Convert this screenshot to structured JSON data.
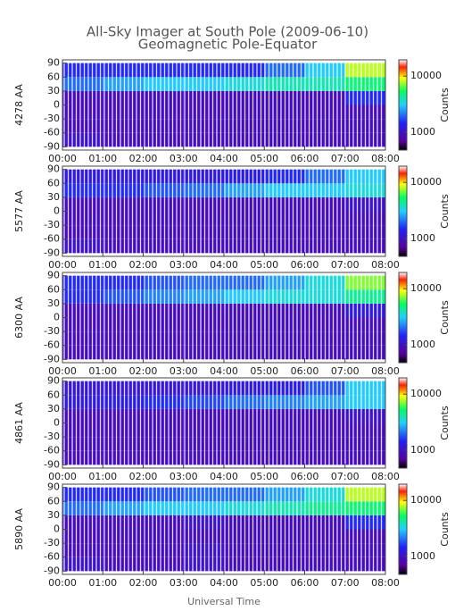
{
  "title": "All-Sky Imager at South Pole (2009-06-10)",
  "subtitle": "Geomagnetic Pole-Equator",
  "xlabel": "Universal Time",
  "chart_data": [
    {
      "type": "heatmap",
      "ylabel": "4278 AA",
      "x": [
        0.5,
        1.5,
        2.5,
        3.5,
        4.5,
        5.5,
        6.5,
        7.5
      ],
      "y": [
        -75,
        -45,
        -15,
        15,
        45,
        75
      ],
      "values": [
        [
          1000,
          900,
          900,
          900,
          900,
          900,
          900,
          900
        ],
        [
          900,
          900,
          900,
          900,
          900,
          900,
          900,
          900
        ],
        [
          900,
          900,
          900,
          900,
          900,
          900,
          900,
          900
        ],
        [
          900,
          900,
          900,
          900,
          900,
          900,
          900,
          1500
        ],
        [
          2000,
          2500,
          3000,
          3000,
          3500,
          4000,
          4000,
          5000
        ],
        [
          1500,
          1500,
          1500,
          1500,
          1500,
          2000,
          3000,
          8000
        ]
      ],
      "xlim": [
        0,
        8
      ],
      "xticks": [
        {
          "value": 0,
          "label": "00:00"
        },
        {
          "value": 1,
          "label": "01:00"
        },
        {
          "value": 2,
          "label": "02:00"
        },
        {
          "value": 3,
          "label": "03:00"
        },
        {
          "value": 4,
          "label": "04:00"
        },
        {
          "value": 5,
          "label": "05:00"
        },
        {
          "value": 6,
          "label": "06:00"
        },
        {
          "value": 7,
          "label": "07:00"
        },
        {
          "value": 8,
          "label": "08:00"
        }
      ],
      "ylim": [
        -97,
        97
      ],
      "yticks": [
        90,
        60,
        30,
        0,
        -30,
        -60,
        -90
      ],
      "colorbar": {
        "label": "Counts",
        "log": true,
        "lim": [
          480,
          19500
        ],
        "ticks": [
          1000,
          10000
        ]
      }
    },
    {
      "type": "heatmap",
      "ylabel": "5577 AA",
      "x": [
        0.5,
        1.5,
        2.5,
        3.5,
        4.5,
        5.5,
        6.5,
        7.5
      ],
      "y": [
        -75,
        -45,
        -15,
        15,
        45,
        75
      ],
      "values": [
        [
          1000,
          900,
          900,
          900,
          900,
          900,
          900,
          900
        ],
        [
          900,
          900,
          900,
          900,
          900,
          900,
          900,
          900
        ],
        [
          900,
          900,
          900,
          900,
          900,
          900,
          900,
          900
        ],
        [
          900,
          900,
          900,
          900,
          900,
          900,
          900,
          1000
        ],
        [
          1500,
          1500,
          1800,
          2000,
          2500,
          3000,
          3000,
          3500
        ],
        [
          1200,
          1200,
          1200,
          1200,
          1300,
          1500,
          2000,
          3000
        ]
      ],
      "xlim": [
        0,
        8
      ],
      "xticks": [
        {
          "value": 0,
          "label": "00:00"
        },
        {
          "value": 1,
          "label": "01:00"
        },
        {
          "value": 2,
          "label": "02:00"
        },
        {
          "value": 3,
          "label": "03:00"
        },
        {
          "value": 4,
          "label": "04:00"
        },
        {
          "value": 5,
          "label": "05:00"
        },
        {
          "value": 6,
          "label": "06:00"
        },
        {
          "value": 7,
          "label": "07:00"
        },
        {
          "value": 8,
          "label": "08:00"
        }
      ],
      "ylim": [
        -97,
        97
      ],
      "yticks": [
        90,
        60,
        30,
        0,
        -30,
        -60,
        -90
      ],
      "colorbar": {
        "label": "Counts",
        "log": true,
        "lim": [
          480,
          19500
        ],
        "ticks": [
          1000,
          10000
        ]
      }
    },
    {
      "type": "heatmap",
      "ylabel": "6300 AA",
      "x": [
        0.5,
        1.5,
        2.5,
        3.5,
        4.5,
        5.5,
        6.5,
        7.5
      ],
      "y": [
        -75,
        -45,
        -15,
        15,
        45,
        75
      ],
      "values": [
        [
          900,
          900,
          900,
          900,
          900,
          900,
          900,
          900
        ],
        [
          900,
          900,
          900,
          900,
          900,
          900,
          900,
          900
        ],
        [
          900,
          900,
          900,
          900,
          900,
          900,
          900,
          900
        ],
        [
          900,
          900,
          900,
          900,
          900,
          900,
          900,
          1200
        ],
        [
          1500,
          1800,
          2200,
          2500,
          3000,
          3500,
          3500,
          4500
        ],
        [
          1500,
          1500,
          1800,
          2000,
          2000,
          2500,
          3500,
          7000
        ]
      ],
      "xlim": [
        0,
        8
      ],
      "xticks": [
        {
          "value": 0,
          "label": "00:00"
        },
        {
          "value": 1,
          "label": "01:00"
        },
        {
          "value": 2,
          "label": "02:00"
        },
        {
          "value": 3,
          "label": "03:00"
        },
        {
          "value": 4,
          "label": "04:00"
        },
        {
          "value": 5,
          "label": "05:00"
        },
        {
          "value": 6,
          "label": "06:00"
        },
        {
          "value": 7,
          "label": "07:00"
        },
        {
          "value": 8,
          "label": "08:00"
        }
      ],
      "ylim": [
        -97,
        97
      ],
      "yticks": [
        90,
        60,
        30,
        0,
        -30,
        -60,
        -90
      ],
      "colorbar": {
        "label": "Counts",
        "log": true,
        "lim": [
          480,
          19500
        ],
        "ticks": [
          1000,
          10000
        ]
      }
    },
    {
      "type": "heatmap",
      "ylabel": "4861 AA",
      "x": [
        0.5,
        1.5,
        2.5,
        3.5,
        4.5,
        5.5,
        6.5,
        7.5
      ],
      "y": [
        -75,
        -45,
        -15,
        15,
        45,
        75
      ],
      "values": [
        [
          900,
          900,
          900,
          900,
          900,
          900,
          900,
          900
        ],
        [
          900,
          900,
          900,
          900,
          900,
          900,
          900,
          900
        ],
        [
          900,
          900,
          900,
          900,
          900,
          900,
          900,
          900
        ],
        [
          900,
          900,
          900,
          900,
          900,
          900,
          900,
          1000
        ],
        [
          1200,
          1300,
          1500,
          1700,
          2000,
          2200,
          2500,
          3000
        ],
        [
          1100,
          1100,
          1100,
          1100,
          1200,
          1300,
          1800,
          3000
        ]
      ],
      "xlim": [
        0,
        8
      ],
      "xticks": [
        {
          "value": 0,
          "label": "00:00"
        },
        {
          "value": 1,
          "label": "01:00"
        },
        {
          "value": 2,
          "label": "02:00"
        },
        {
          "value": 3,
          "label": "03:00"
        },
        {
          "value": 4,
          "label": "04:00"
        },
        {
          "value": 5,
          "label": "05:00"
        },
        {
          "value": 6,
          "label": "06:00"
        },
        {
          "value": 7,
          "label": "07:00"
        },
        {
          "value": 8,
          "label": "08:00"
        }
      ],
      "ylim": [
        -97,
        97
      ],
      "yticks": [
        90,
        60,
        30,
        0,
        -30,
        -60,
        -90
      ],
      "colorbar": {
        "label": "Counts",
        "log": true,
        "lim": [
          480,
          19500
        ],
        "ticks": [
          1000,
          10000
        ]
      }
    },
    {
      "type": "heatmap",
      "ylabel": "5890 AA",
      "x": [
        0.5,
        1.5,
        2.5,
        3.5,
        4.5,
        5.5,
        6.5,
        7.5
      ],
      "y": [
        -75,
        -45,
        -15,
        15,
        45,
        75
      ],
      "values": [
        [
          1000,
          900,
          900,
          1000,
          900,
          900,
          900,
          900
        ],
        [
          900,
          900,
          900,
          1000,
          900,
          900,
          900,
          900
        ],
        [
          900,
          900,
          900,
          900,
          900,
          900,
          900,
          900
        ],
        [
          900,
          900,
          900,
          1000,
          900,
          900,
          900,
          1500
        ],
        [
          2000,
          2500,
          3000,
          3000,
          3500,
          4000,
          4500,
          5000
        ],
        [
          1500,
          1500,
          1800,
          2000,
          2000,
          2500,
          3500,
          8000
        ]
      ],
      "xlim": [
        0,
        8
      ],
      "xticks": [
        {
          "value": 0,
          "label": "00:00"
        },
        {
          "value": 1,
          "label": "01:00"
        },
        {
          "value": 2,
          "label": "02:00"
        },
        {
          "value": 3,
          "label": "03:00"
        },
        {
          "value": 4,
          "label": "04:00"
        },
        {
          "value": 5,
          "label": "05:00"
        },
        {
          "value": 6,
          "label": "06:00"
        },
        {
          "value": 7,
          "label": "07:00"
        },
        {
          "value": 8,
          "label": "08:00"
        }
      ],
      "ylim": [
        -97,
        97
      ],
      "yticks": [
        90,
        60,
        30,
        0,
        -30,
        -60,
        -90
      ],
      "colorbar": {
        "label": "Counts",
        "log": true,
        "lim": [
          480,
          19500
        ],
        "ticks": [
          1000,
          10000
        ]
      }
    }
  ]
}
